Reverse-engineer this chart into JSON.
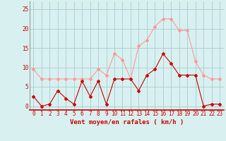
{
  "x": [
    0,
    1,
    2,
    3,
    4,
    5,
    6,
    7,
    8,
    9,
    10,
    11,
    12,
    13,
    14,
    15,
    16,
    17,
    18,
    19,
    20,
    21,
    22,
    23
  ],
  "avg_wind": [
    2.5,
    0,
    0.5,
    4,
    2,
    0.5,
    6.5,
    2.5,
    6.5,
    0.5,
    7,
    7,
    7,
    4,
    8,
    9.5,
    13.5,
    11,
    8,
    8,
    8,
    0,
    0.5,
    0.5
  ],
  "gust_wind": [
    9.5,
    7,
    7,
    7,
    7,
    7,
    7,
    7,
    9.5,
    8,
    13.5,
    12,
    7,
    15.5,
    17,
    20.5,
    22.5,
    22.5,
    19.5,
    19.5,
    11.5,
    8,
    7,
    7
  ],
  "avg_color": "#cc0000",
  "gust_color": "#ff9999",
  "bg_color": "#d8f0f0",
  "grid_color": "#aacccc",
  "xlabel": "Vent moyen/en rafales ( km/h )",
  "xlabel_color": "#cc0000",
  "xlabel_fontsize": 6.5,
  "tick_color": "#cc0000",
  "tick_fontsize": 5.5,
  "ylim": [
    -1,
    27
  ],
  "xlim": [
    -0.5,
    23.5
  ],
  "yticks": [
    0,
    5,
    10,
    15,
    20,
    25
  ],
  "marker_size": 2,
  "linewidth": 0.8
}
